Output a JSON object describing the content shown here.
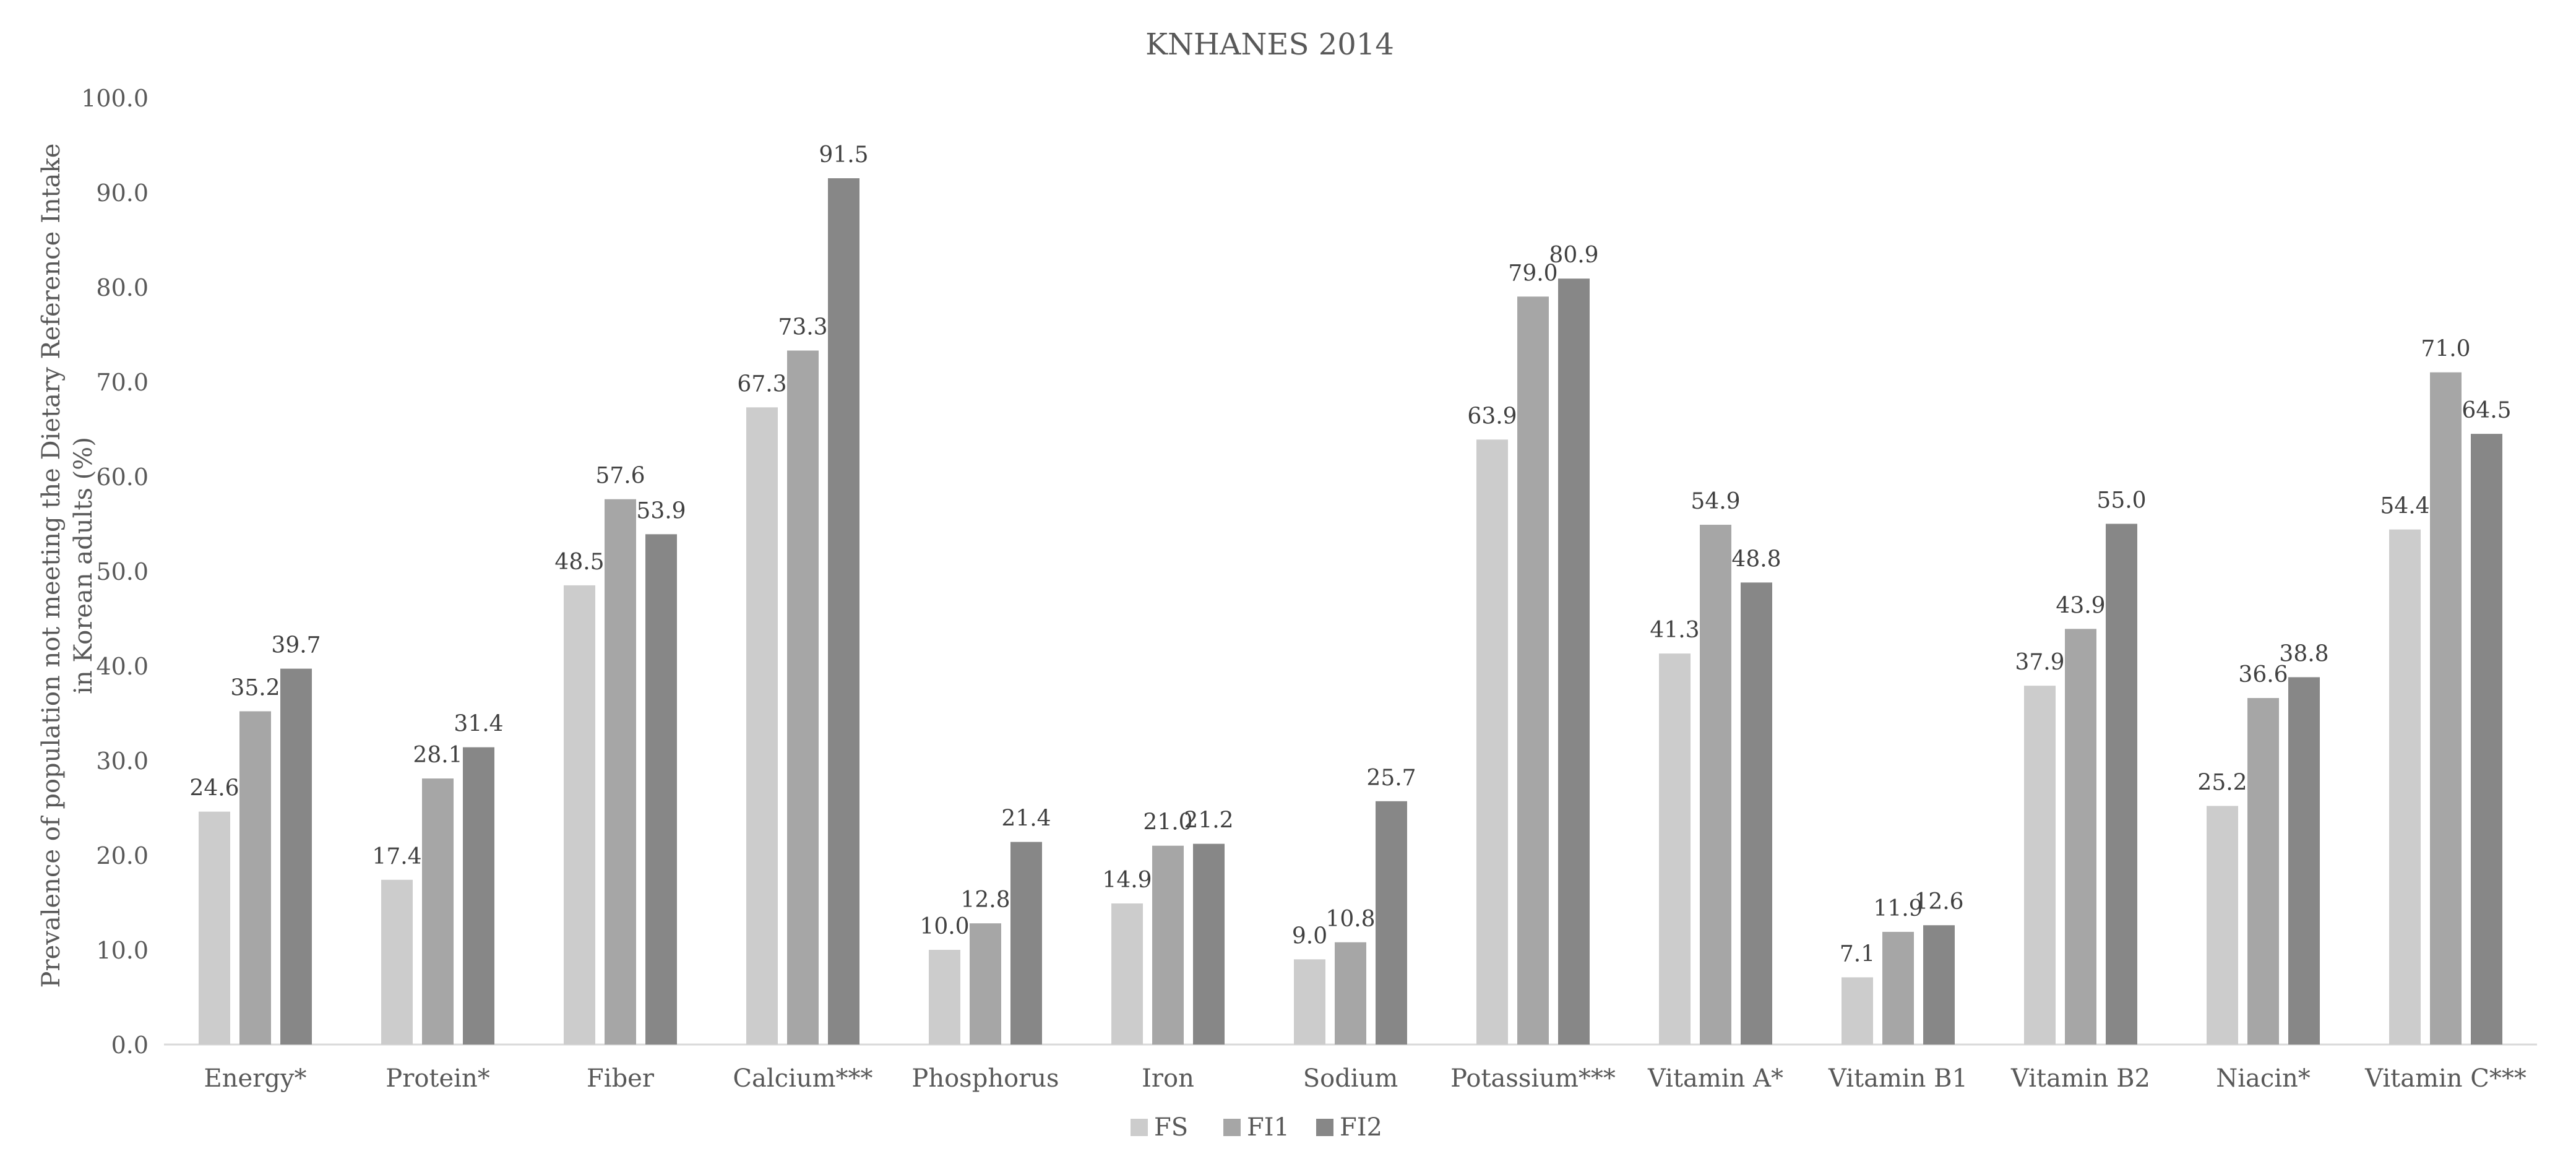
{
  "chart_data": {
    "type": "bar",
    "title": "KNHANES 2014",
    "ylabel_line1": "Prevalence of population not meeting the Dietary Reference Intake",
    "ylabel_line2": "in Korean adults (%)",
    "xlabel": "",
    "ylim": [
      0,
      100
    ],
    "yticks": [
      "0.0",
      "10.0",
      "20.0",
      "30.0",
      "40.0",
      "50.0",
      "60.0",
      "70.0",
      "80.0",
      "90.0",
      "100.0"
    ],
    "categories": [
      "Energy*",
      "Protein*",
      "Fiber",
      "Calcium***",
      "Phosphorus",
      "Iron",
      "Sodium",
      "Potassium***",
      "Vitamin A*",
      "Vitamin B1",
      "Vitamin B2",
      "Niacin*",
      "Vitamin C***"
    ],
    "series": [
      {
        "name": "FS",
        "color": "#cccccc",
        "values": [
          24.6,
          17.4,
          48.5,
          67.3,
          10.0,
          14.9,
          9.0,
          63.9,
          41.3,
          7.1,
          37.9,
          25.2,
          54.4
        ]
      },
      {
        "name": "FI1",
        "color": "#a6a6a6",
        "values": [
          35.2,
          28.1,
          57.6,
          73.3,
          12.8,
          21.0,
          10.8,
          79.0,
          54.9,
          11.9,
          43.9,
          36.6,
          71.0
        ]
      },
      {
        "name": "FI2",
        "color": "#878787",
        "values": [
          39.7,
          31.4,
          53.9,
          91.5,
          21.4,
          21.2,
          25.7,
          80.9,
          48.8,
          12.6,
          55.0,
          38.8,
          64.5
        ]
      }
    ],
    "data_labels": [
      [
        "24.6",
        "17.4",
        "48.5",
        "67.3",
        "10.0",
        "14.9",
        "9.0",
        "63.9",
        "41.3",
        "7.1",
        "37.9",
        "25.2",
        "54.4"
      ],
      [
        "35.2",
        "28.1",
        "57.6",
        "73.3",
        "12.8",
        "21.0",
        "10.8",
        "79.0",
        "54.9",
        "11.9",
        "43.9",
        "36.6",
        "71.0"
      ],
      [
        "39.7",
        "31.4",
        "53.9",
        "91.5",
        "21.4",
        "21.2",
        "25.7",
        "80.9",
        "48.8",
        "12.6",
        "55.0",
        "38.8",
        "64.5"
      ]
    ],
    "grid": false,
    "legend_position": "bottom-center"
  }
}
